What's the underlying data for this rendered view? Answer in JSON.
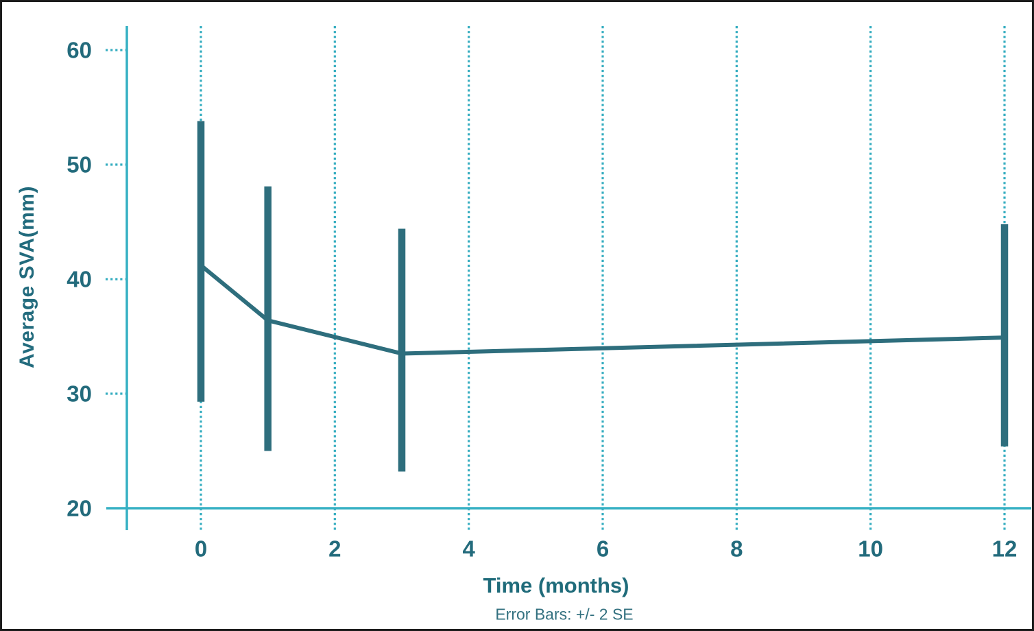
{
  "figure": {
    "background": "#ffffff",
    "border_color": "#1c1c1c"
  },
  "chart_data": {
    "type": "line",
    "title": "",
    "xlabel": "Time (months)",
    "ylabel": "Average SVA(mm)",
    "caption": "Error Bars: +/- 2 SE",
    "x": [
      0,
      1,
      3,
      12
    ],
    "series": [
      {
        "name": "Average SVA",
        "means": [
          41.2,
          36.4,
          33.5,
          34.9
        ],
        "upper": [
          53.8,
          48.1,
          44.4,
          44.8
        ],
        "lower": [
          29.3,
          25.0,
          23.2,
          25.4
        ]
      }
    ],
    "error_bar_definition": "+/- 2 SE",
    "x_ticks": [
      0,
      2,
      4,
      6,
      8,
      10,
      12
    ],
    "y_ticks": [
      20,
      30,
      40,
      50,
      60
    ],
    "xlim": [
      -1.1,
      12.4
    ],
    "ylim": [
      20,
      62.1
    ],
    "grid": "vertical-dotted",
    "legend": "none",
    "colors": {
      "series_dark_teal": "#2e6e7d",
      "axis_light_teal": "#35b0c3",
      "grid_dot_teal": "#35adc0",
      "tick_label_teal": "#236b7c",
      "caption_teal": "#32707f"
    }
  }
}
